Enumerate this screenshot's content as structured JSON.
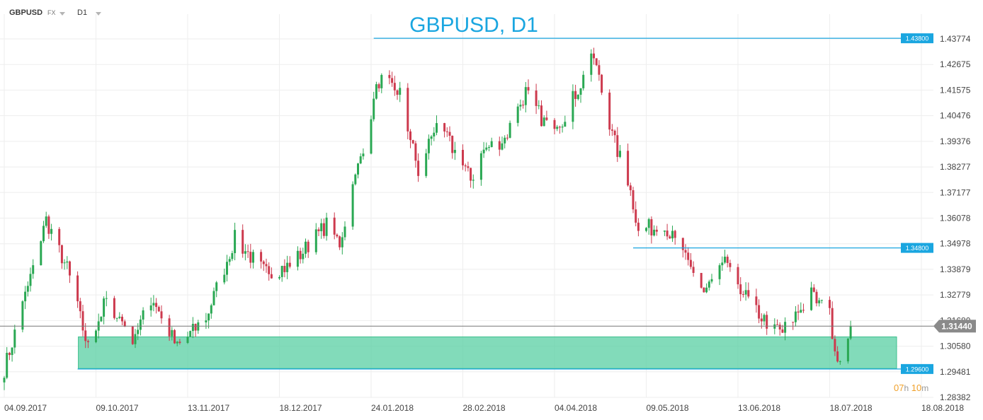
{
  "toolbar": {
    "symbol": "GBPUSD",
    "market": "FX",
    "timeframe": "D1"
  },
  "countdown": {
    "hours": "07",
    "h_unit": "h",
    "minutes": "10",
    "m_unit": "m"
  },
  "colors": {
    "up": "#2aa853",
    "down": "#cd3a4e",
    "level": "#1aa6e0",
    "zone": "#5fd1a6",
    "price_line": "#777777",
    "grid": "#eeeeee",
    "title": "#1aa6e0"
  },
  "chart_data": {
    "type": "candlestick",
    "title": "GBPUSD, D1",
    "x_tick_labels": [
      "04.09.2017",
      "09.10.2017",
      "13.11.2017",
      "18.12.2017",
      "24.01.2018",
      "28.02.2018",
      "04.04.2018",
      "09.05.2018",
      "13.06.2018",
      "18.07.2018",
      "18.08.2018"
    ],
    "y_tick_labels": [
      "1.43774",
      "1.42675",
      "1.41575",
      "1.40476",
      "1.39376",
      "1.38277",
      "1.37177",
      "1.36078",
      "1.34978",
      "1.33879",
      "1.32779",
      "1.31680",
      "1.30580",
      "1.29481",
      "1.28382"
    ],
    "ylim": [
      1.28382,
      1.43774
    ],
    "grid": true,
    "current_price": 1.3144,
    "current_price_label": "1.31440",
    "levels": [
      {
        "value": 1.438,
        "label": "1.43800"
      },
      {
        "value": 1.348,
        "label": "1.34800"
      },
      {
        "value": 1.296,
        "label": "1.29600"
      }
    ],
    "support_zone": {
      "top": 1.3098,
      "bottom": 1.2962
    },
    "anchors": [
      {
        "date": "2017-09-04",
        "close": 1.296
      },
      {
        "date": "2017-09-09",
        "close": 1.315
      },
      {
        "date": "2017-09-20",
        "close": 1.36
      },
      {
        "date": "2017-09-28",
        "close": 1.339
      },
      {
        "date": "2017-10-06",
        "close": 1.305
      },
      {
        "date": "2017-10-13",
        "close": 1.326
      },
      {
        "date": "2017-10-23",
        "close": 1.31
      },
      {
        "date": "2017-10-31",
        "close": 1.326
      },
      {
        "date": "2017-11-09",
        "close": 1.305
      },
      {
        "date": "2017-11-20",
        "close": 1.318
      },
      {
        "date": "2017-12-01",
        "close": 1.352
      },
      {
        "date": "2017-12-12",
        "close": 1.338
      },
      {
        "date": "2017-12-22",
        "close": 1.34
      },
      {
        "date": "2018-01-05",
        "close": 1.358
      },
      {
        "date": "2018-01-10",
        "close": 1.35
      },
      {
        "date": "2018-01-25",
        "close": 1.42
      },
      {
        "date": "2018-02-02",
        "close": 1.415
      },
      {
        "date": "2018-02-09",
        "close": 1.38
      },
      {
        "date": "2018-02-16",
        "close": 1.403
      },
      {
        "date": "2018-03-01",
        "close": 1.377
      },
      {
        "date": "2018-03-06",
        "close": 1.39
      },
      {
        "date": "2018-03-14",
        "close": 1.395
      },
      {
        "date": "2018-03-22",
        "close": 1.415
      },
      {
        "date": "2018-03-29",
        "close": 1.402
      },
      {
        "date": "2018-04-05",
        "close": 1.403
      },
      {
        "date": "2018-04-17",
        "close": 1.43
      },
      {
        "date": "2018-04-24",
        "close": 1.396
      },
      {
        "date": "2018-04-30",
        "close": 1.377
      },
      {
        "date": "2018-05-04",
        "close": 1.357
      },
      {
        "date": "2018-05-15",
        "close": 1.356
      },
      {
        "date": "2018-05-29",
        "close": 1.329
      },
      {
        "date": "2018-06-07",
        "close": 1.342
      },
      {
        "date": "2018-06-14",
        "close": 1.327
      },
      {
        "date": "2018-06-21",
        "close": 1.317
      },
      {
        "date": "2018-06-28",
        "close": 1.312
      },
      {
        "date": "2018-07-09",
        "close": 1.328
      },
      {
        "date": "2018-07-16",
        "close": 1.319
      },
      {
        "date": "2018-07-19",
        "close": 1.3
      },
      {
        "date": "2018-07-24",
        "close": 1.3144
      }
    ]
  }
}
